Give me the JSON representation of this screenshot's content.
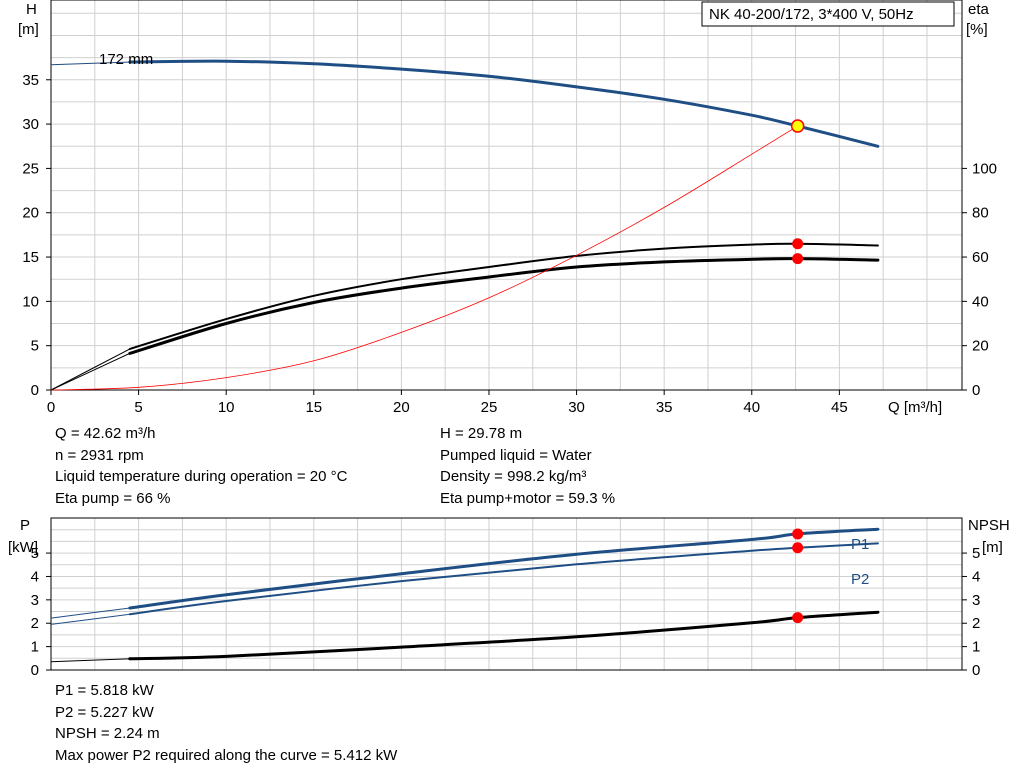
{
  "title_box": "NK 40-200/172, 3*400 V, 50Hz",
  "top_chart": {
    "y_left_label": [
      "H",
      "[m]"
    ],
    "y_right_label": [
      "eta",
      "[%]"
    ],
    "x_label": "Q [m³/h]",
    "x_ticks": [
      "0",
      "5",
      "10",
      "15",
      "20",
      "25",
      "30",
      "35",
      "40",
      "45"
    ],
    "y_left_ticks": [
      "0",
      "5",
      "10",
      "15",
      "20",
      "25",
      "30",
      "35"
    ],
    "y_right_ticks": [
      "0",
      "20",
      "40",
      "60",
      "80",
      "100"
    ],
    "impeller_label": "172 mm"
  },
  "bottom_chart": {
    "y_left_label": [
      "P",
      "[kW]"
    ],
    "y_right_label": [
      "NPSH",
      "[m]"
    ],
    "y_left_ticks": [
      "0",
      "1",
      "2",
      "3",
      "4",
      "5"
    ],
    "y_right_ticks": [
      "0",
      "1",
      "2",
      "3",
      "4",
      "5"
    ],
    "p1_label": "P1",
    "p2_label": "P2"
  },
  "info_top_left": [
    "Q = 42.62 m³/h",
    "n = 2931 rpm",
    "Liquid temperature during operation = 20 °C",
    "Eta pump = 66 %"
  ],
  "info_top_right": [
    "H = 29.78 m",
    "Pumped liquid = Water",
    "Density = 998.2 kg/m³",
    "Eta pump+motor = 59.3 %"
  ],
  "info_bottom": [
    "P1 = 5.818 kW",
    "P2 = 5.227 kW",
    "NPSH = 2.24 m",
    "Max power P2 required along the curve = 5.412 kW"
  ],
  "colors": {
    "blue": "#1f4e85",
    "black": "#000000",
    "red": "#ff0000",
    "grid": "#d0d0d0",
    "marker_yellow": "#ffff00"
  },
  "chart_data": [
    {
      "type": "line",
      "title": "NK 40-200/172, 3*400 V, 50Hz",
      "xlabel": "Q [m³/h]",
      "ylabel": "H [m]",
      "y2label": "eta [%]",
      "xlim": [
        0,
        52
      ],
      "ylim": [
        0,
        44
      ],
      "y2lim": [
        0,
        176
      ],
      "grid": true,
      "series": [
        {
          "name": "172 mm",
          "axis": "H",
          "x": [
            0,
            4.5,
            10,
            15,
            20,
            25,
            30,
            35,
            40,
            42.62,
            47.2
          ],
          "values": [
            36.7,
            37.0,
            37.1,
            36.8,
            36.2,
            35.4,
            34.2,
            32.8,
            31.0,
            29.78,
            27.5
          ]
        },
        {
          "name": "",
          "axis": "eta",
          "x": [
            0,
            4.5,
            10,
            15,
            20,
            25,
            30,
            35,
            40,
            42.62,
            47.2
          ],
          "values": [
            0,
            18.5,
            32,
            42.5,
            50,
            55.5,
            60.5,
            63.8,
            65.6,
            66,
            65.2
          ]
        },
        {
          "name": "",
          "axis": "eta",
          "x": [
            0,
            4.5,
            10,
            15,
            20,
            25,
            30,
            35,
            40,
            42.62,
            47.2
          ],
          "values": [
            0,
            16.5,
            30,
            39.5,
            46,
            51,
            55.5,
            57.8,
            59.0,
            59.3,
            58.6
          ]
        },
        {
          "name": "",
          "axis": "H",
          "x": [
            0,
            5,
            10,
            15,
            20,
            25,
            30,
            35,
            40,
            42.62
          ],
          "values": [
            0,
            0.3,
            1.4,
            3.3,
            6.5,
            10.4,
            15.2,
            20.6,
            26.6,
            29.78
          ]
        }
      ],
      "operating_point": {
        "x": 42.62,
        "H": 29.78,
        "eta_pump": 66,
        "eta_pump_motor": 59.3
      }
    },
    {
      "type": "line",
      "xlabel": "Q [m³/h]",
      "ylabel": "P [kW]",
      "y2label": "NPSH [m]",
      "xlim": [
        0,
        52
      ],
      "ylim": [
        0,
        6.5
      ],
      "y2lim": [
        0,
        6.5
      ],
      "grid": true,
      "series": [
        {
          "name": "P1",
          "axis": "P",
          "x": [
            0,
            4.5,
            10,
            20,
            30,
            40,
            42.62,
            47.2
          ],
          "values": [
            2.22,
            2.65,
            3.22,
            4.12,
            4.95,
            5.58,
            5.818,
            6.02
          ]
        },
        {
          "name": "P2",
          "axis": "P",
          "x": [
            0,
            4.5,
            10,
            20,
            30,
            40,
            42.62,
            47.2
          ],
          "values": [
            1.95,
            2.38,
            2.95,
            3.8,
            4.52,
            5.1,
            5.227,
            5.412
          ]
        },
        {
          "name": "",
          "axis": "NPSH",
          "x": [
            0,
            4.5,
            10,
            20,
            30,
            40,
            42.62,
            47.2
          ],
          "values": [
            0.35,
            0.48,
            0.58,
            0.98,
            1.42,
            2.02,
            2.24,
            2.47
          ]
        }
      ],
      "operating_point": {
        "x": 42.62,
        "P1": 5.818,
        "P2": 5.227,
        "NPSH": 2.24
      }
    }
  ]
}
